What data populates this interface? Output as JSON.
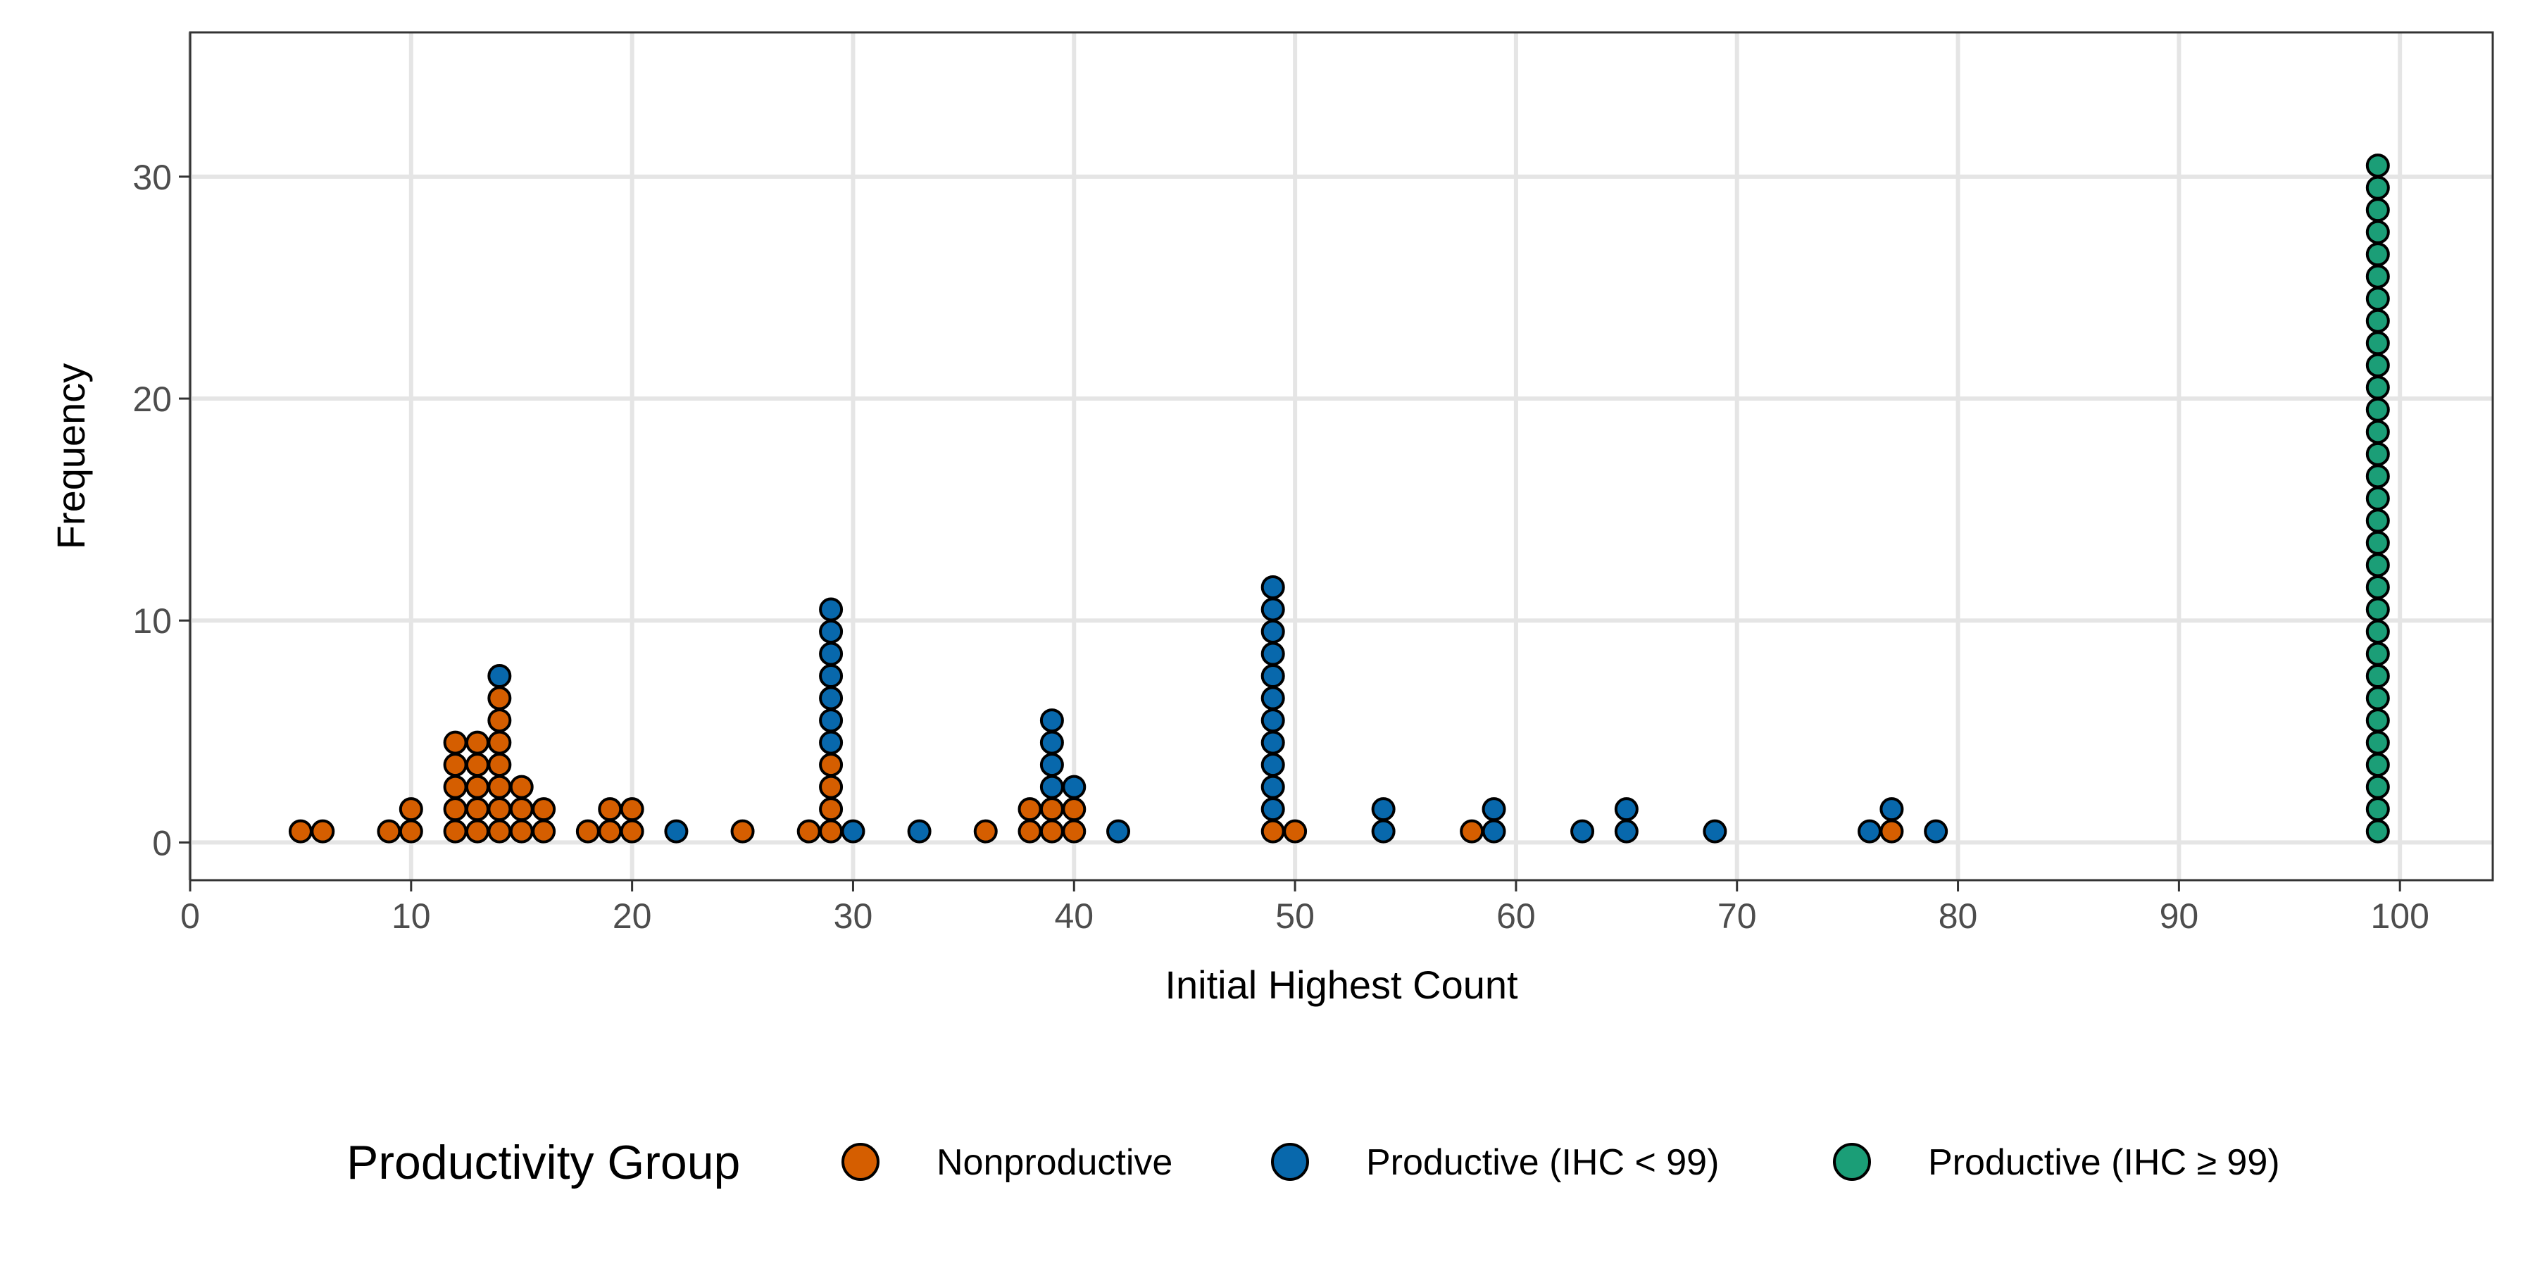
{
  "chart_data": {
    "type": "scatter",
    "subtype": "dotplot",
    "title": "",
    "xlabel": "Initial Highest Count",
    "ylabel": "Frequency",
    "xlim": [
      0,
      104.2
    ],
    "ylim": [
      -1.7,
      36.5
    ],
    "x_ticks": [
      0,
      10,
      20,
      30,
      40,
      50,
      60,
      70,
      80,
      90,
      100
    ],
    "y_ticks": [
      0,
      10,
      20,
      30
    ],
    "x_tick_labels": [
      "0",
      "10",
      "20",
      "30",
      "40",
      "50",
      "60",
      "70",
      "80",
      "90",
      "100"
    ],
    "y_tick_labels": [
      "0",
      "10",
      "20",
      "30"
    ],
    "grid": true,
    "legend": {
      "title": "Productivity Group",
      "position": "bottom"
    },
    "series": [
      {
        "name": "Nonproductive",
        "color": "#d55e00",
        "points": [
          [
            5,
            1
          ],
          [
            6,
            1
          ],
          [
            9,
            1
          ],
          [
            10,
            2
          ],
          [
            12,
            5
          ],
          [
            13,
            5
          ],
          [
            14,
            7
          ],
          [
            15,
            3
          ],
          [
            16,
            2
          ],
          [
            18,
            1
          ],
          [
            19,
            2
          ],
          [
            20,
            2
          ],
          [
            25,
            1
          ],
          [
            28,
            1
          ],
          [
            29,
            4
          ],
          [
            36,
            1
          ],
          [
            38,
            2
          ],
          [
            39,
            2
          ],
          [
            40,
            2
          ],
          [
            49,
            1
          ],
          [
            50,
            1
          ],
          [
            58,
            1
          ],
          [
            77,
            1
          ]
        ]
      },
      {
        "name": "Productive (IHC < 99)",
        "color": "#0868ac",
        "points": [
          [
            14,
            1
          ],
          [
            22,
            1
          ],
          [
            29,
            7
          ],
          [
            30,
            1
          ],
          [
            33,
            1
          ],
          [
            39,
            4
          ],
          [
            40,
            1
          ],
          [
            42,
            1
          ],
          [
            49,
            11
          ],
          [
            54,
            2
          ],
          [
            59,
            2
          ],
          [
            63,
            1
          ],
          [
            65,
            2
          ],
          [
            69,
            1
          ],
          [
            76,
            1
          ],
          [
            77,
            1
          ],
          [
            79,
            1
          ]
        ]
      },
      {
        "name": "Productive (IHC ≥ 99)",
        "color": "#1b9e77",
        "points": [
          [
            99,
            31
          ]
        ]
      }
    ]
  }
}
